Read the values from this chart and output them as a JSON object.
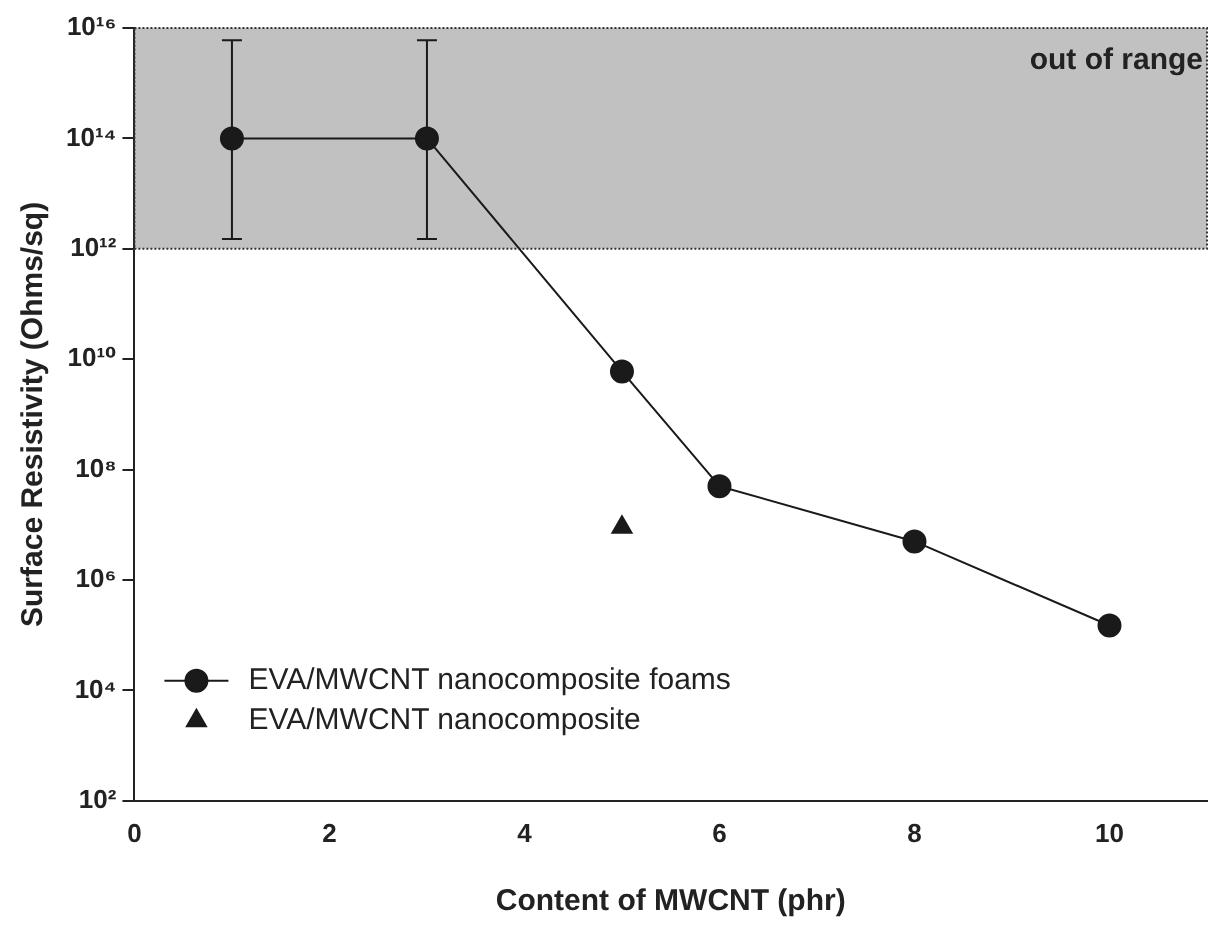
{
  "chart_data": {
    "type": "line",
    "xlabel": "Content of MWCNT (phr)",
    "ylabel": "Surface Resistivity (Ohms/sq)",
    "xlim": [
      0,
      11
    ],
    "xticks": [
      0,
      2,
      4,
      6,
      8,
      10
    ],
    "ylim": [
      100,
      1e+16
    ],
    "log": true,
    "yticks": [
      {
        "value": 100.0,
        "label": "10²"
      },
      {
        "value": 10000.0,
        "label": "10⁴"
      },
      {
        "value": 1000000.0,
        "label": "10⁶"
      },
      {
        "value": 100000000.0,
        "label": "10⁸"
      },
      {
        "value": 10000000000.0,
        "label": "10¹⁰"
      },
      {
        "value": 1000000000000.0,
        "label": "10¹²"
      },
      {
        "value": 100000000000000.0,
        "label": "10¹⁴"
      },
      {
        "value": 1e+16,
        "label": "10¹⁶"
      }
    ],
    "series": [
      {
        "name": "EVA/MWCNT nanocomposite foams",
        "type": "line",
        "color": "#1a1a1a",
        "marker": "circle",
        "x": [
          1,
          3,
          5,
          6,
          8,
          10
        ],
        "values": [
          100000000000000.0,
          100000000000000.0,
          6000000000.0,
          50000000.0,
          5000000.0,
          150000.0
        ],
        "errors": [
          [
            1500000000000.0,
            6000000000000000.0
          ],
          [
            1500000000000.0,
            6000000000000000.0
          ],
          null,
          null,
          null,
          null
        ]
      },
      {
        "name": "EVA/MWCNT nanocomposite",
        "type": "scatter",
        "color": "#1a1a1a",
        "marker": "triangle",
        "x": [
          5
        ],
        "values": [
          9000000.0
        ]
      }
    ],
    "bands": [
      {
        "axis": "y",
        "from": 1000000000000.0,
        "to": 1e+16,
        "label": "out of range",
        "color": "#333333"
      }
    ],
    "grid": false,
    "legend": "bottom left"
  }
}
